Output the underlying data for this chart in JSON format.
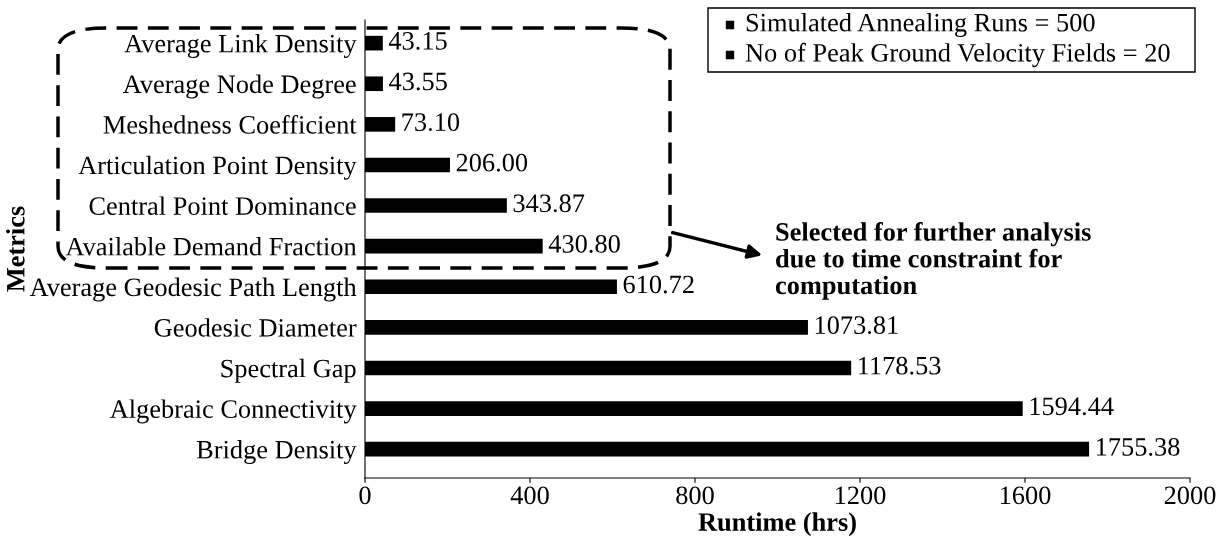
{
  "chart_data": {
    "type": "bar",
    "orientation": "horizontal",
    "xlabel": "Runtime (hrs)",
    "ylabel": "Metrics",
    "categories": [
      "Average Link Density",
      "Average Node Degree",
      "Meshedness Coefficient",
      "Articulation Point Density",
      "Central Point Dominance",
      "Available Demand Fraction",
      "Average Geodesic Path Length",
      "Geodesic Diameter",
      "Spectral Gap",
      "Algebraic Connectivity",
      "Bridge Density"
    ],
    "values": [
      43.15,
      43.55,
      73.1,
      206.0,
      343.87,
      430.8,
      610.72,
      1073.81,
      1178.53,
      1594.44,
      1755.38
    ],
    "value_labels": [
      "43.15",
      "43.55",
      "73.10",
      "206.00",
      "343.87",
      "430.80",
      "610.72",
      "1073.81",
      "1178.53",
      "1594.44",
      "1755.38"
    ],
    "color": "#000000",
    "xlim": [
      0,
      2000
    ],
    "xticks": [
      0,
      400,
      800,
      1200,
      1600,
      2000
    ],
    "grid": false,
    "legend": false,
    "annotations": [
      "Simulated Annealing Runs = 500",
      "No of Peak Ground Velocity Fields = 20",
      "Selected for further analysis\ndue to time constraint for\ncomputation"
    ]
  }
}
